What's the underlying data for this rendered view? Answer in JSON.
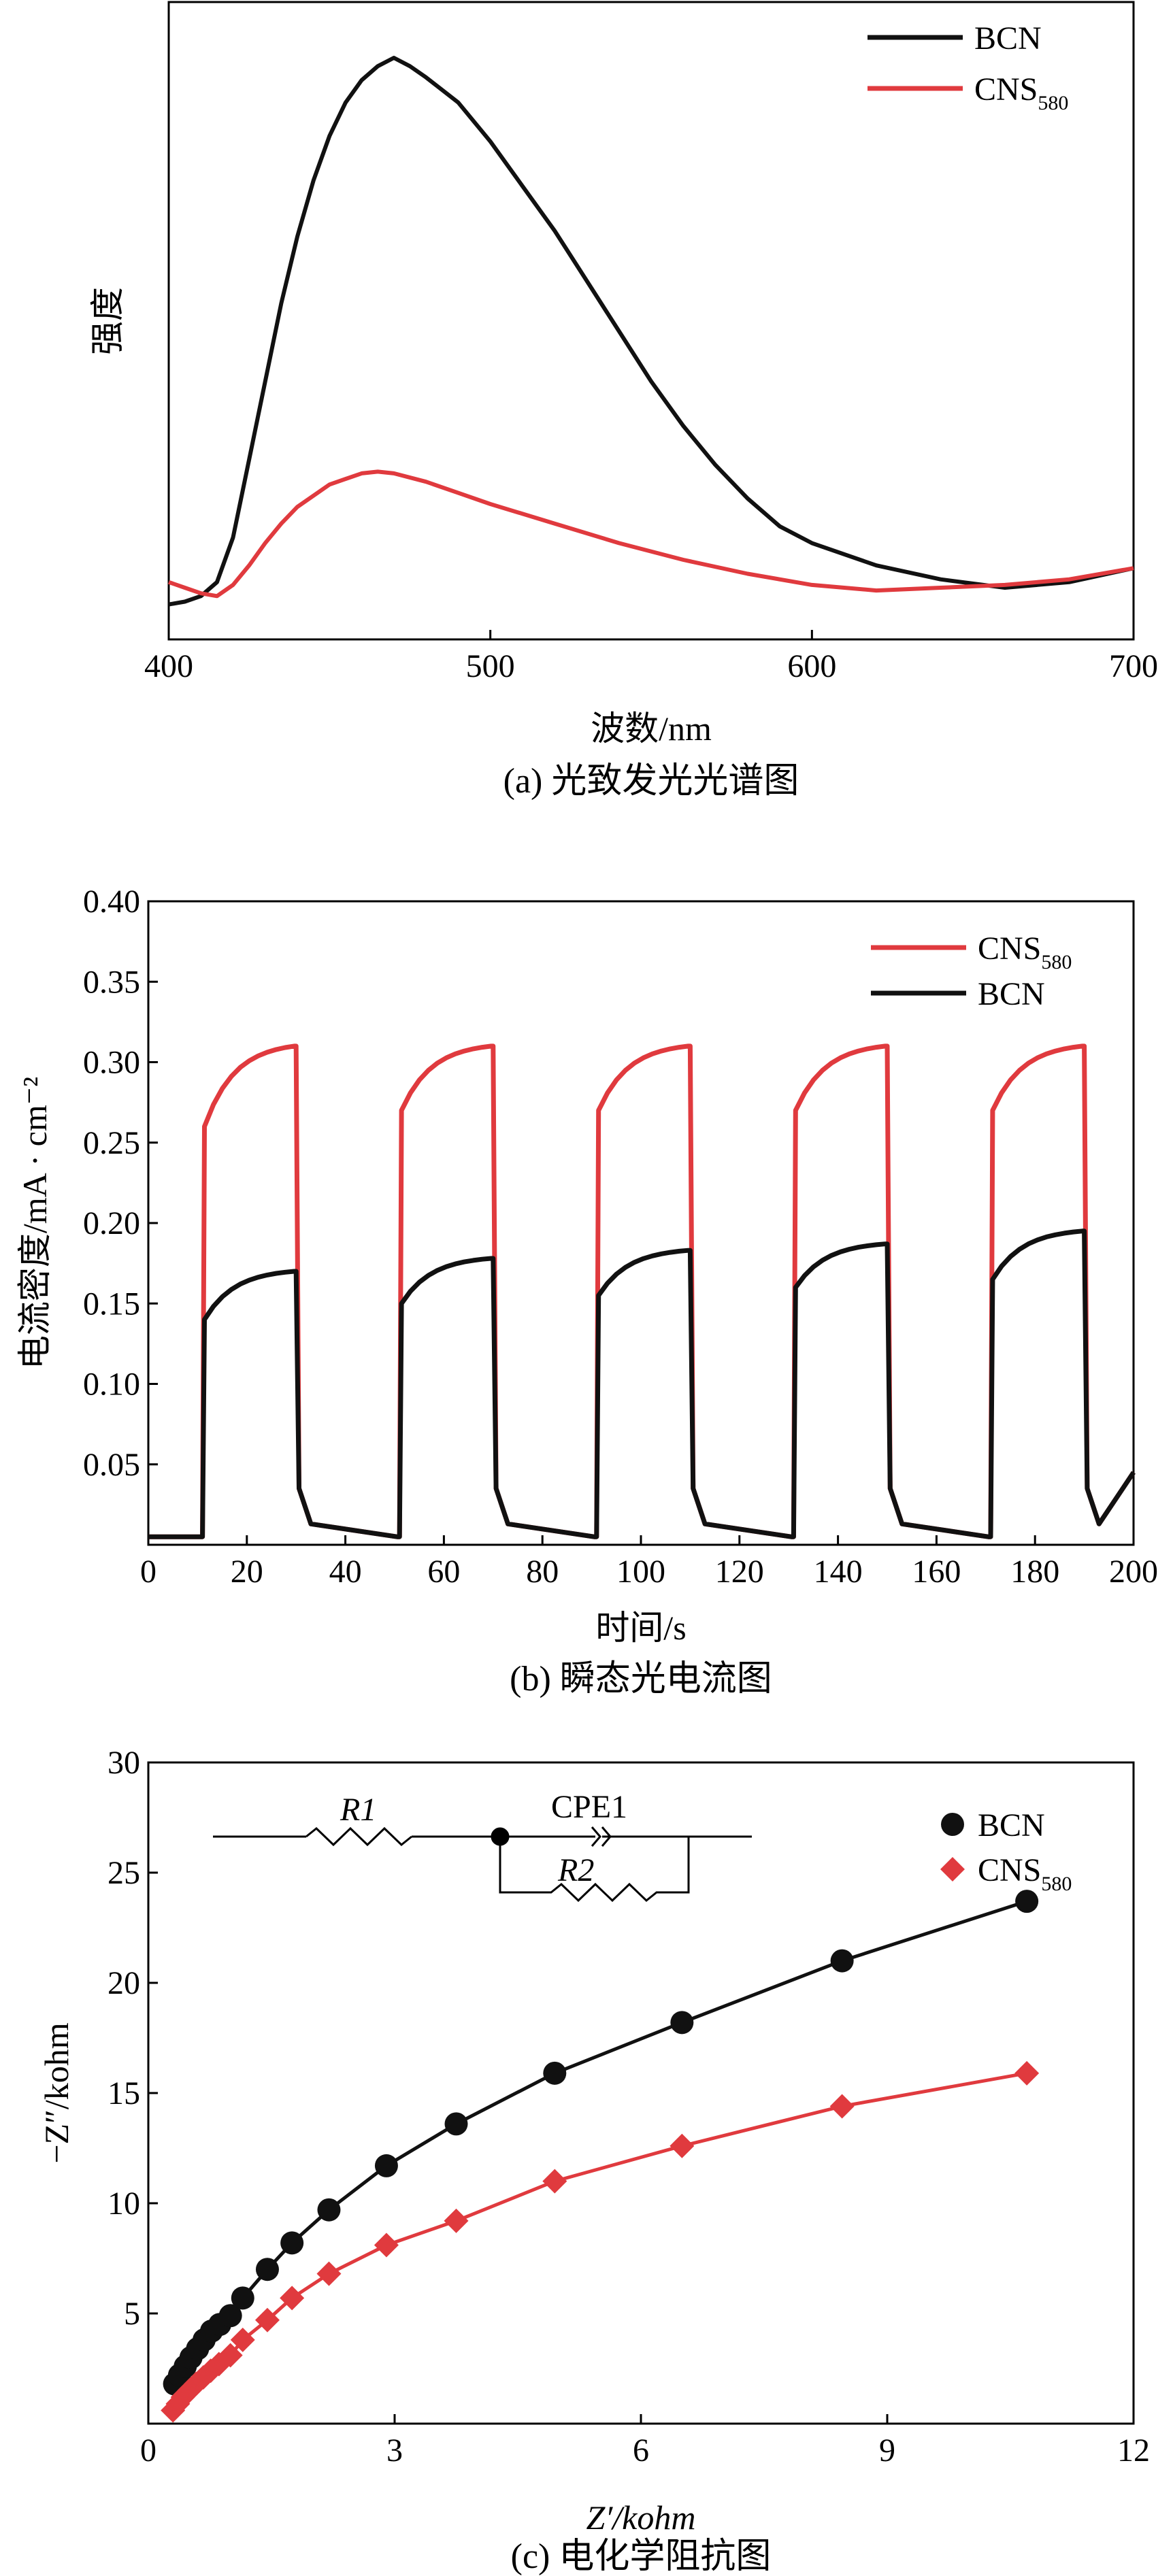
{
  "chart_data": [
    {
      "id": "a",
      "type": "line",
      "caption": "(a) 光致发光光谱图",
      "xlabel": "波数/nm",
      "ylabel": "强度",
      "xlim": [
        400,
        700
      ],
      "ylim": [
        0,
        1
      ],
      "xticks": [
        400,
        500,
        600,
        700
      ],
      "yticks": [],
      "legend_position": "top-right",
      "series": [
        {
          "name": "BCN",
          "color": "#111111",
          "x": [
            400,
            405,
            410,
            415,
            420,
            425,
            430,
            435,
            440,
            445,
            450,
            455,
            460,
            465,
            470,
            475,
            480,
            490,
            500,
            510,
            520,
            530,
            540,
            550,
            560,
            570,
            580,
            590,
            600,
            620,
            640,
            660,
            680,
            700
          ],
          "y": [
            0.02,
            0.025,
            0.035,
            0.06,
            0.14,
            0.28,
            0.42,
            0.56,
            0.68,
            0.78,
            0.86,
            0.92,
            0.96,
            0.985,
            1.0,
            0.985,
            0.965,
            0.92,
            0.85,
            0.77,
            0.69,
            0.6,
            0.51,
            0.42,
            0.34,
            0.27,
            0.21,
            0.16,
            0.13,
            0.09,
            0.065,
            0.05,
            0.06,
            0.085
          ]
        },
        {
          "name": "CNS",
          "name_sub": "580",
          "color": "#e03a3e",
          "x": [
            400,
            405,
            410,
            415,
            420,
            425,
            430,
            435,
            440,
            450,
            460,
            465,
            470,
            480,
            490,
            500,
            520,
            540,
            560,
            580,
            600,
            620,
            640,
            660,
            680,
            700
          ],
          "y": [
            0.06,
            0.05,
            0.04,
            0.035,
            0.055,
            0.09,
            0.13,
            0.165,
            0.195,
            0.235,
            0.255,
            0.258,
            0.255,
            0.24,
            0.22,
            0.2,
            0.165,
            0.13,
            0.1,
            0.075,
            0.055,
            0.045,
            0.05,
            0.055,
            0.065,
            0.085
          ]
        }
      ]
    },
    {
      "id": "b",
      "type": "line",
      "caption": "(b) 瞬态光电流图",
      "xlabel": "时间/s",
      "ylabel": "电流密度/mA · cm⁻²",
      "xlim": [
        0,
        200
      ],
      "ylim": [
        0,
        0.4
      ],
      "xticks": [
        0,
        20,
        40,
        60,
        80,
        100,
        120,
        140,
        160,
        180,
        200
      ],
      "yticks": [
        0.05,
        0.1,
        0.15,
        0.2,
        0.25,
        0.3,
        0.35,
        0.4
      ],
      "ytick_labels": [
        "0.05",
        "0.10",
        "0.15",
        "0.20",
        "0.25",
        "0.30",
        "0.35",
        "0.40"
      ],
      "legend_position": "top-right",
      "light_on": [
        11,
        51,
        91,
        131,
        171
      ],
      "light_period_s": 19,
      "series": [
        {
          "name": "CNS",
          "name_sub": "580",
          "color": "#e03a3e",
          "baseline": 0.005,
          "plateau_start": [
            0.26,
            0.27,
            0.27,
            0.27,
            0.27
          ],
          "plateau_end": [
            0.31,
            0.31,
            0.31,
            0.31,
            0.31
          ]
        },
        {
          "name": "BCN",
          "color": "#111111",
          "baseline": 0.005,
          "plateau_start": [
            0.14,
            0.15,
            0.155,
            0.16,
            0.165
          ],
          "plateau_end": [
            0.17,
            0.178,
            0.183,
            0.187,
            0.195
          ]
        }
      ]
    },
    {
      "id": "c",
      "type": "scatter",
      "caption": "(c) 电化学阻抗图",
      "xlabel": "Z′/kohm",
      "ylabel": "−Z″/kohm",
      "xlim": [
        0,
        12
      ],
      "ylim": [
        0,
        30
      ],
      "xticks": [
        0,
        3,
        6,
        9,
        12
      ],
      "yticks": [
        5,
        10,
        15,
        20,
        25,
        30
      ],
      "legend_position": "top-right",
      "circuit": {
        "r1_label": "R1",
        "cpe_label": "CPE1",
        "r2_label": "R2"
      },
      "series": [
        {
          "name": "BCN",
          "marker": "circle",
          "color": "#111111",
          "x": [
            0.32,
            0.38,
            0.45,
            0.52,
            0.6,
            0.68,
            0.77,
            0.87,
            1.0,
            1.15,
            1.45,
            1.75,
            2.2,
            2.9,
            3.75,
            4.95,
            6.5,
            8.45,
            10.7
          ],
          "y": [
            1.8,
            2.2,
            2.6,
            3.0,
            3.4,
            3.8,
            4.2,
            4.5,
            4.9,
            5.7,
            7.0,
            8.2,
            9.7,
            11.7,
            13.6,
            15.9,
            18.2,
            21.0,
            23.7
          ]
        },
        {
          "name": "CNS",
          "name_sub": "580",
          "marker": "diamond",
          "color": "#e03a3e",
          "x": [
            0.3,
            0.36,
            0.42,
            0.5,
            0.58,
            0.67,
            0.76,
            0.86,
            1.0,
            1.15,
            1.45,
            1.75,
            2.2,
            2.9,
            3.75,
            4.95,
            6.5,
            8.45,
            10.7
          ],
          "y": [
            0.6,
            0.9,
            1.2,
            1.5,
            1.8,
            2.1,
            2.4,
            2.7,
            3.1,
            3.8,
            4.7,
            5.7,
            6.8,
            8.1,
            9.2,
            11.0,
            12.6,
            14.4,
            15.9
          ]
        }
      ]
    }
  ]
}
